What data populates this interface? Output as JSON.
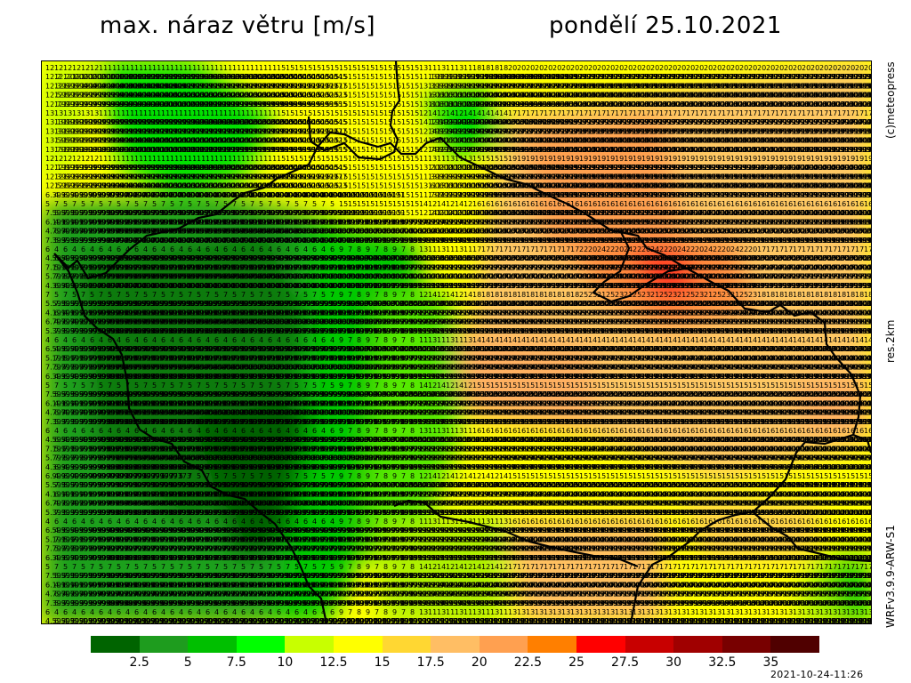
{
  "header": {
    "title_left": "max. náraz větru [m/s]",
    "title_right": "pondělí 25.10.2021"
  },
  "side_labels": {
    "copyright": "(c)meteopress",
    "resolution": "res.2km",
    "model": "WRFv3.9.9-ARW-S1"
  },
  "timestamp": "2021-10-24-11:26",
  "map": {
    "name": "max wind gust map",
    "values_grid_note": "wind gust values in m/s shown as numbers across grid",
    "legend_colors": [
      "#006400",
      "#1e9c1e",
      "#00bf00",
      "#00ff00",
      "#c8ff00",
      "#ffff00",
      "#ffd732",
      "#ffbe64",
      "#ffa050",
      "#ff7f00",
      "#ff0000",
      "#c80000",
      "#a00000",
      "#780000",
      "#500000"
    ],
    "legend_ticks": [
      "2.5",
      "5",
      "7.5",
      "10",
      "12.5",
      "15",
      "17.5",
      "20",
      "22.5",
      "25",
      "27.5",
      "30",
      "32.5",
      "35"
    ]
  }
}
